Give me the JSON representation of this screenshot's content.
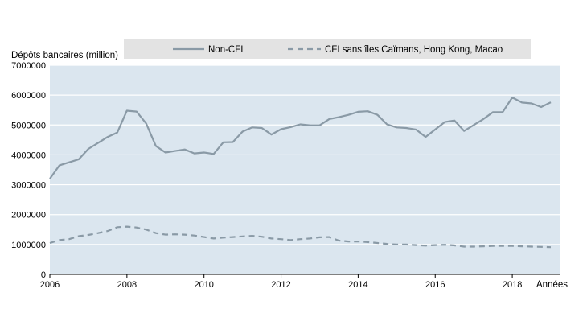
{
  "chart_data": {
    "type": "line",
    "title": "",
    "ylabel": "Dépôts bancaires (million)",
    "xlabel": "Années",
    "x_tick_labels": [
      "2006",
      "2008",
      "2010",
      "2012",
      "2014",
      "2016",
      "2018"
    ],
    "x_ticks": [
      2006,
      2008,
      2010,
      2012,
      2014,
      2016,
      2018
    ],
    "y_tick_labels": [
      "0",
      "1000000",
      "2000000",
      "3000000",
      "4000000",
      "5000000",
      "6000000",
      "7000000"
    ],
    "y_ticks": [
      0,
      1000000,
      2000000,
      3000000,
      4000000,
      5000000,
      6000000,
      7000000
    ],
    "xlim": [
      2006,
      2019.25
    ],
    "ylim": [
      0,
      7000000
    ],
    "grid": "horizontal",
    "legend_position": "top",
    "series": [
      {
        "name": "Non-CFI",
        "style": "solid",
        "color": "#8a9aa6",
        "x": [
          2006.0,
          2006.25,
          2006.5,
          2006.75,
          2007.0,
          2007.25,
          2007.5,
          2007.75,
          2008.0,
          2008.25,
          2008.5,
          2008.75,
          2009.0,
          2009.25,
          2009.5,
          2009.75,
          2010.0,
          2010.25,
          2010.5,
          2010.75,
          2011.0,
          2011.25,
          2011.5,
          2011.75,
          2012.0,
          2012.25,
          2012.5,
          2012.75,
          2013.0,
          2013.25,
          2013.5,
          2013.75,
          2014.0,
          2014.25,
          2014.5,
          2014.75,
          2015.0,
          2015.25,
          2015.5,
          2015.75,
          2016.0,
          2016.25,
          2016.5,
          2016.75,
          2017.0,
          2017.25,
          2017.5,
          2017.75,
          2018.0,
          2018.25,
          2018.5,
          2018.75,
          2019.0
        ],
        "values": [
          3200000,
          3650000,
          3750000,
          3850000,
          4200000,
          4400000,
          4600000,
          4750000,
          5480000,
          5450000,
          5050000,
          4300000,
          4080000,
          4130000,
          4180000,
          4050000,
          4080000,
          4030000,
          4420000,
          4430000,
          4780000,
          4920000,
          4900000,
          4680000,
          4860000,
          4930000,
          5020000,
          4990000,
          4990000,
          5200000,
          5260000,
          5340000,
          5440000,
          5460000,
          5340000,
          5020000,
          4920000,
          4900000,
          4850000,
          4600000,
          4850000,
          5100000,
          5150000,
          4800000,
          5000000,
          5200000,
          5430000,
          5430000,
          5920000,
          5750000,
          5720000,
          5600000,
          5760000
        ]
      },
      {
        "name": "CFI sans îles Caïmans, Hong Kong, Macao",
        "style": "dashed",
        "color": "#8a9aa6",
        "x": [
          2006.0,
          2006.25,
          2006.5,
          2006.75,
          2007.0,
          2007.25,
          2007.5,
          2007.75,
          2008.0,
          2008.25,
          2008.5,
          2008.75,
          2009.0,
          2009.25,
          2009.5,
          2009.75,
          2010.0,
          2010.25,
          2010.5,
          2010.75,
          2011.0,
          2011.25,
          2011.5,
          2011.75,
          2012.0,
          2012.25,
          2012.5,
          2012.75,
          2013.0,
          2013.25,
          2013.5,
          2013.75,
          2014.0,
          2014.25,
          2014.5,
          2014.75,
          2015.0,
          2015.25,
          2015.5,
          2015.75,
          2016.0,
          2016.25,
          2016.5,
          2016.75,
          2017.0,
          2017.25,
          2017.5,
          2017.75,
          2018.0,
          2018.25,
          2018.5,
          2018.75,
          2019.0
        ],
        "values": [
          1050000,
          1150000,
          1180000,
          1280000,
          1320000,
          1380000,
          1450000,
          1580000,
          1600000,
          1570000,
          1500000,
          1380000,
          1330000,
          1340000,
          1330000,
          1300000,
          1250000,
          1200000,
          1230000,
          1250000,
          1270000,
          1290000,
          1260000,
          1200000,
          1180000,
          1150000,
          1180000,
          1200000,
          1240000,
          1250000,
          1130000,
          1100000,
          1100000,
          1080000,
          1050000,
          1020000,
          1000000,
          1000000,
          980000,
          960000,
          980000,
          990000,
          970000,
          930000,
          930000,
          940000,
          950000,
          950000,
          950000,
          940000,
          930000,
          920000,
          910000
        ]
      }
    ]
  }
}
